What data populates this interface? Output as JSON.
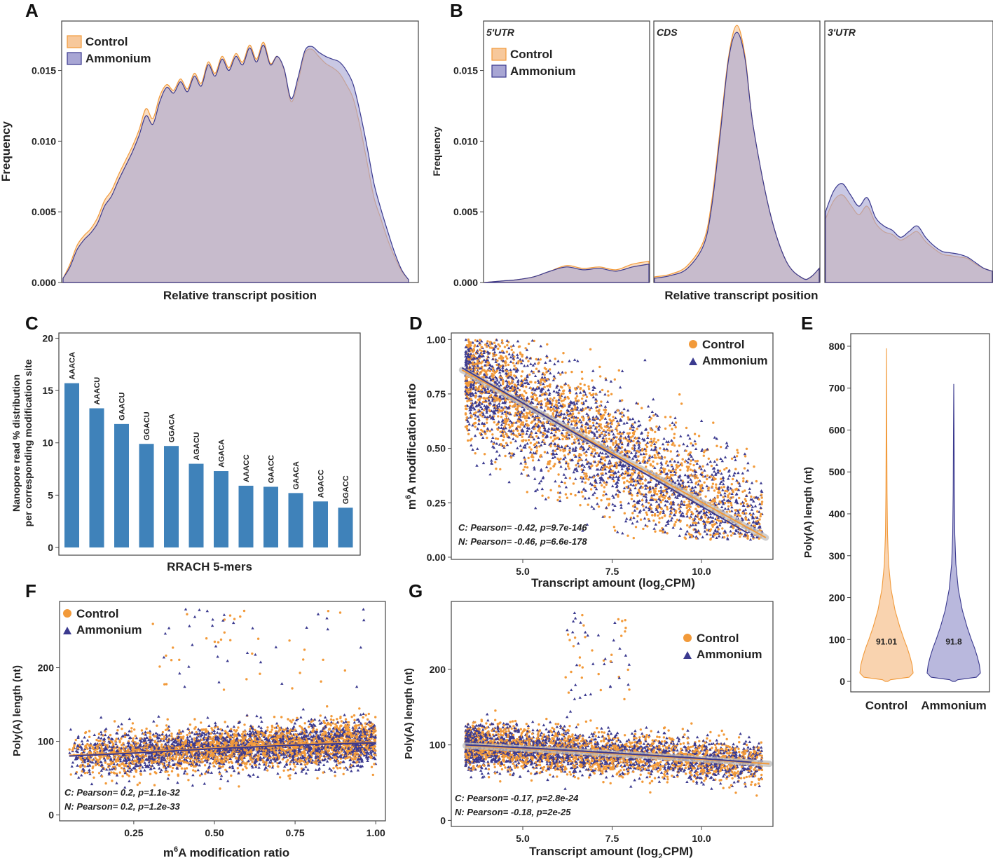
{
  "colors": {
    "control": "#f29a3a",
    "control_fill": "#f7c89b",
    "ammonium": "#3b3a8f",
    "ammonium_fill": "#a8a6d4",
    "overlap_fill": "#b3a2a1",
    "bar": "#3f82ba",
    "axis": "#333333",
    "band": "#bfbfbf"
  },
  "legend": {
    "control": "Control",
    "ammonium": "Ammonium"
  },
  "chart_data": [
    {
      "id": "A",
      "panel_label": "A",
      "type": "area",
      "xlabel": "Relative transcript position",
      "ylabel": "Frequency",
      "ylim": [
        0,
        0.0185
      ],
      "xlim": [
        0,
        1
      ],
      "yticks": [
        0,
        0.005,
        0.01,
        0.015
      ],
      "ytick_labels": [
        "0.000",
        "0.005",
        "0.010",
        "0.015"
      ],
      "legend_placement": "top-left",
      "x": [
        0,
        0.02,
        0.04,
        0.06,
        0.08,
        0.1,
        0.12,
        0.14,
        0.16,
        0.18,
        0.2,
        0.22,
        0.24,
        0.26,
        0.28,
        0.3,
        0.32,
        0.34,
        0.36,
        0.38,
        0.4,
        0.42,
        0.44,
        0.46,
        0.48,
        0.5,
        0.52,
        0.54,
        0.56,
        0.58,
        0.6,
        0.62,
        0.64,
        0.66,
        0.68,
        0.7,
        0.72,
        0.74,
        0.76,
        0.78,
        0.8,
        0.82,
        0.84,
        0.86,
        0.88,
        0.9,
        0.92,
        0.94,
        0.96,
        0.98,
        1
      ],
      "series": [
        {
          "name": "Control",
          "values": [
            0.0003,
            0.0013,
            0.0026,
            0.0033,
            0.0038,
            0.0046,
            0.0058,
            0.0065,
            0.0076,
            0.0086,
            0.0096,
            0.0108,
            0.0123,
            0.0116,
            0.0132,
            0.014,
            0.0136,
            0.0144,
            0.0137,
            0.0148,
            0.0141,
            0.0156,
            0.0148,
            0.016,
            0.0152,
            0.0162,
            0.0156,
            0.0168,
            0.0158,
            0.017,
            0.0155,
            0.016,
            0.015,
            0.0128,
            0.0142,
            0.0162,
            0.0165,
            0.016,
            0.0155,
            0.0152,
            0.0148,
            0.014,
            0.013,
            0.011,
            0.0085,
            0.006,
            0.0045,
            0.003,
            0.0018,
            0.0008,
            0.0002
          ]
        },
        {
          "name": "Ammonium",
          "values": [
            0.0003,
            0.0011,
            0.0023,
            0.003,
            0.0035,
            0.0042,
            0.0054,
            0.0061,
            0.0072,
            0.0082,
            0.0092,
            0.0104,
            0.0118,
            0.0112,
            0.0128,
            0.0138,
            0.0134,
            0.0142,
            0.0135,
            0.0146,
            0.0139,
            0.0154,
            0.0146,
            0.0158,
            0.015,
            0.016,
            0.0154,
            0.0166,
            0.0156,
            0.0168,
            0.0154,
            0.016,
            0.0151,
            0.013,
            0.0145,
            0.0164,
            0.0167,
            0.0163,
            0.016,
            0.0158,
            0.0156,
            0.015,
            0.014,
            0.012,
            0.0096,
            0.007,
            0.0052,
            0.0036,
            0.0021,
            0.0009,
            0.0002
          ]
        }
      ]
    },
    {
      "id": "B",
      "panel_label": "B",
      "type": "area",
      "xlabel": "Relative transcript position",
      "ylabel": "Frequency",
      "ylim": [
        0,
        0.0185
      ],
      "yticks": [
        0,
        0.005,
        0.01,
        0.015
      ],
      "ytick_labels": [
        "0.000",
        "0.005",
        "0.010",
        "0.015"
      ],
      "legend_placement": "top-left",
      "facets": [
        {
          "name": "5'UTR",
          "x": [
            0,
            0.1,
            0.2,
            0.3,
            0.4,
            0.5,
            0.6,
            0.7,
            0.8,
            0.9,
            1
          ],
          "series": [
            {
              "name": "Control",
              "values": [
                0.0,
                0.0001,
                0.0002,
                0.0004,
                0.0008,
                0.0012,
                0.001,
                0.0011,
                0.0009,
                0.0013,
                0.0015
              ]
            },
            {
              "name": "Ammonium",
              "values": [
                0.0,
                0.0001,
                0.0002,
                0.0004,
                0.0008,
                0.0011,
                0.0009,
                0.001,
                0.0008,
                0.0011,
                0.0013
              ]
            }
          ]
        },
        {
          "name": "CDS",
          "x": [
            0,
            0.1,
            0.2,
            0.3,
            0.35,
            0.4,
            0.45,
            0.5,
            0.55,
            0.6,
            0.7,
            0.8,
            0.9,
            0.95,
            1
          ],
          "series": [
            {
              "name": "Control",
              "values": [
                0.0004,
                0.0006,
                0.0012,
                0.003,
                0.006,
                0.011,
                0.016,
                0.0182,
                0.016,
                0.011,
                0.005,
                0.0015,
                0.0003,
                0.0004,
                0.001
              ]
            },
            {
              "name": "Ammonium",
              "values": [
                0.0003,
                0.0005,
                0.001,
                0.0027,
                0.0056,
                0.0106,
                0.0158,
                0.0177,
                0.0158,
                0.011,
                0.005,
                0.0015,
                0.0003,
                0.0004,
                0.001
              ]
            }
          ]
        },
        {
          "name": "3'UTR",
          "x": [
            0,
            0.05,
            0.1,
            0.15,
            0.2,
            0.25,
            0.3,
            0.35,
            0.4,
            0.45,
            0.5,
            0.55,
            0.6,
            0.65,
            0.7,
            0.75,
            0.8,
            0.85,
            0.9,
            0.95,
            1
          ],
          "series": [
            {
              "name": "Control",
              "values": [
                0.0045,
                0.0058,
                0.0062,
                0.0055,
                0.0048,
                0.0054,
                0.0042,
                0.0036,
                0.0034,
                0.003,
                0.0033,
                0.0036,
                0.0029,
                0.0024,
                0.002,
                0.0019,
                0.0018,
                0.0017,
                0.0013,
                0.001,
                0.0008
              ]
            },
            {
              "name": "Ammonium",
              "values": [
                0.005,
                0.0065,
                0.007,
                0.0062,
                0.0054,
                0.006,
                0.0046,
                0.004,
                0.0037,
                0.0032,
                0.0036,
                0.004,
                0.0032,
                0.0026,
                0.0022,
                0.0021,
                0.002,
                0.0018,
                0.0014,
                0.001,
                0.0008
              ]
            }
          ]
        }
      ]
    },
    {
      "id": "C",
      "panel_label": "C",
      "type": "bar",
      "xlabel": "RRACH 5-mers",
      "ylabel_lines": [
        "Nanopore read % distribution",
        "per corresponding modification site"
      ],
      "ylim": [
        0,
        20.5
      ],
      "yticks": [
        0,
        5,
        10,
        15,
        20
      ],
      "categories": [
        "AAACA",
        "AAACU",
        "GAACU",
        "GGACU",
        "GGACA",
        "AGACU",
        "AGACA",
        "AAACC",
        "GAACC",
        "GAACA",
        "AGACC",
        "GGACC"
      ],
      "values": [
        15.7,
        13.3,
        11.8,
        9.9,
        9.7,
        8.0,
        7.3,
        5.9,
        5.8,
        5.2,
        4.4,
        3.8
      ]
    },
    {
      "id": "D",
      "panel_label": "D",
      "type": "scatter",
      "xlabel_main": "Transcript amount (log",
      "xlabel_sub": "2",
      "xlabel_end": "CPM)",
      "ylabel_pre": "m",
      "ylabel_sup": "6",
      "ylabel_main": "A  modification ratio",
      "xlim": [
        3.0,
        12.0
      ],
      "ylim": [
        -0.01,
        1.03
      ],
      "xticks": [
        5,
        7.5,
        10
      ],
      "xtick_labels": [
        "5.0",
        "7.5",
        "10.0"
      ],
      "yticks": [
        0,
        0.25,
        0.5,
        0.75,
        1
      ],
      "ytick_labels": [
        "0.00",
        "0.25",
        "0.50",
        "0.75",
        "1.00"
      ],
      "legend_placement": "top-right",
      "annotations": [
        "C: Pearson= -0.42, p=9.7e-146",
        "N: Pearson= -0.46, p=6.6e-178"
      ],
      "fit_lines": [
        {
          "name": "Control",
          "x": [
            3.3,
            11.8
          ],
          "y": [
            0.86,
            0.09
          ]
        },
        {
          "name": "Ammonium",
          "x": [
            3.3,
            11.3
          ],
          "y": [
            0.87,
            0.11
          ]
        }
      ]
    },
    {
      "id": "E",
      "panel_label": "E",
      "type": "violin",
      "ylabel": "Poly(A) length (nt)",
      "ylim": [
        -25,
        830
      ],
      "yticks": [
        0,
        100,
        200,
        300,
        400,
        500,
        600,
        700,
        800
      ],
      "categories": [
        "Control",
        "Ammonium"
      ],
      "medians": [
        "91.01",
        "91.8"
      ],
      "max_values": [
        795,
        710
      ]
    },
    {
      "id": "F",
      "panel_label": "F",
      "type": "scatter",
      "xlabel_pre": "m",
      "xlabel_sup": "6",
      "xlabel_main": "A modification ratio",
      "ylabel": "Poly(A) length (nt)",
      "xlim": [
        0.02,
        1.03
      ],
      "ylim": [
        -8,
        290
      ],
      "xticks": [
        0.25,
        0.5,
        0.75,
        1
      ],
      "xtick_labels": [
        "0.25",
        "0.50",
        "0.75",
        "1.00"
      ],
      "yticks": [
        0,
        100,
        200
      ],
      "ytick_labels": [
        "0",
        "100",
        "200"
      ],
      "legend_placement": "top-left",
      "annotations": [
        "C: Pearson= 0.2, p=1.1e-32",
        "N: Pearson= 0.2, p=1.2e-33"
      ],
      "fit_lines": [
        {
          "name": "Control",
          "x": [
            0.05,
            0.25,
            0.5,
            0.75,
            1.0
          ],
          "y": [
            81,
            85,
            91,
            96,
            99
          ]
        },
        {
          "name": "Ammonium",
          "x": [
            0.05,
            0.25,
            0.5,
            0.75,
            1.0
          ],
          "y": [
            80,
            84,
            90,
            95,
            98
          ]
        }
      ]
    },
    {
      "id": "G",
      "panel_label": "G",
      "type": "scatter",
      "xlabel_main": "Transcript amount (log",
      "xlabel_sub": "2",
      "xlabel_end": "CPM)",
      "ylabel": "Poly(A) length (nt)",
      "xlim": [
        3.0,
        12.0
      ],
      "ylim": [
        -8,
        290
      ],
      "xticks": [
        5,
        7.5,
        10
      ],
      "xtick_labels": [
        "5.0",
        "7.5",
        "10.0"
      ],
      "yticks": [
        0,
        100,
        200
      ],
      "ytick_labels": [
        "0",
        "100",
        "200"
      ],
      "legend_placement": "top-right",
      "annotations": [
        "C: Pearson= -0.17, p=2.8e-24",
        "N: Pearson= -0.18, p=2e-25"
      ],
      "fit_lines": [
        {
          "name": "Control",
          "x": [
            3.4,
            5.5,
            8.0,
            10.0,
            11.9
          ],
          "y": [
            99,
            94,
            87,
            81,
            75
          ]
        },
        {
          "name": "Ammonium",
          "x": [
            3.4,
            5.5,
            8.0,
            10.0,
            11.4
          ],
          "y": [
            100,
            95,
            88,
            82,
            77
          ]
        }
      ]
    }
  ]
}
